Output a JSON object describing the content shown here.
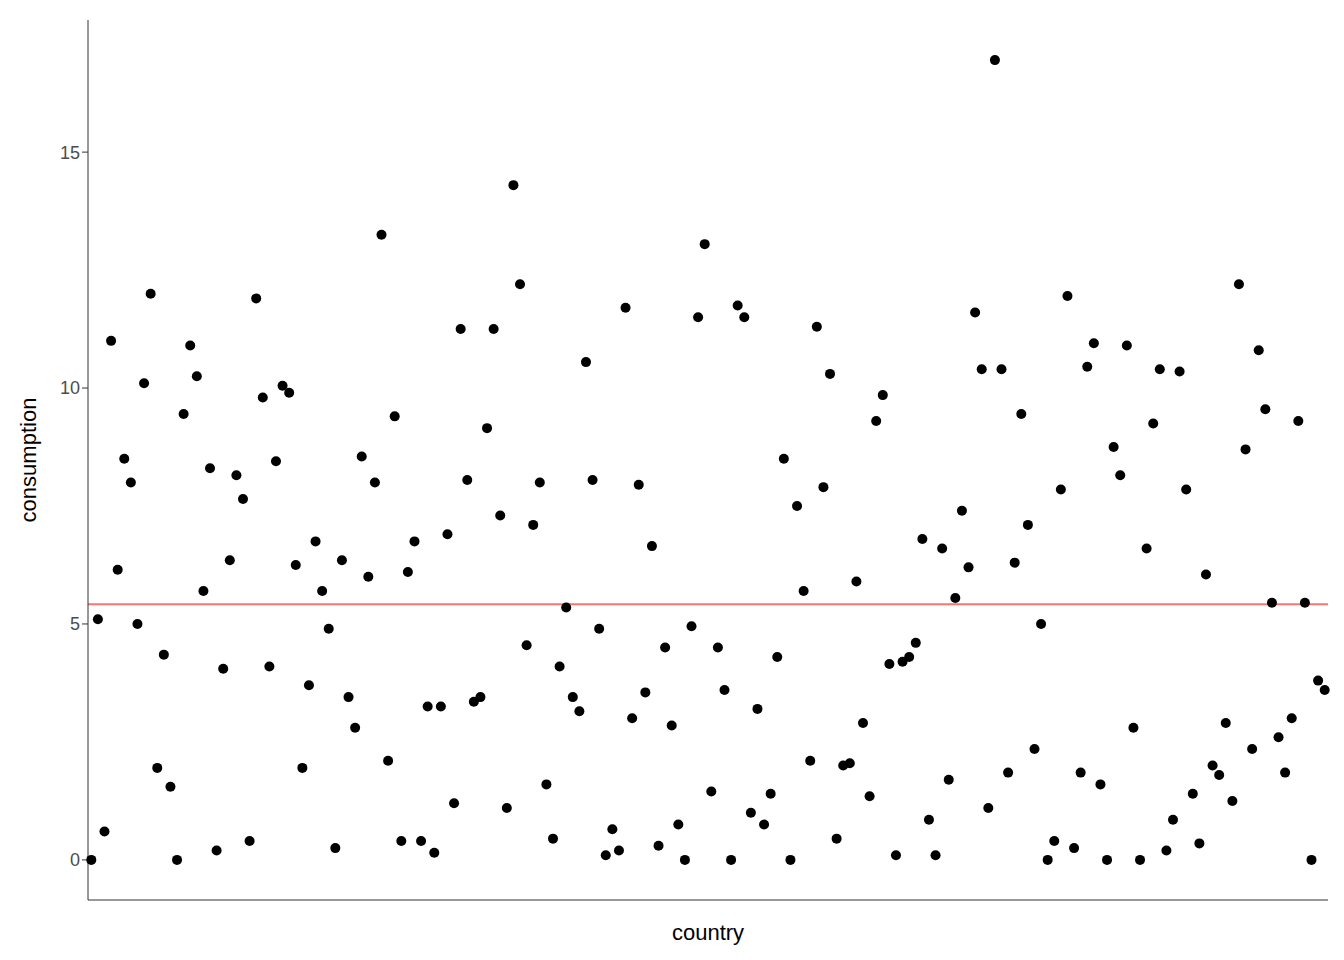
{
  "chart_data": {
    "type": "scatter",
    "x_label": "country",
    "y_label": "consumption",
    "color": "#000000",
    "marker": "circle",
    "tick_labels": "y",
    "grid": false,
    "ylim": [
      -0.85,
      17.8
    ],
    "yticks": [
      0,
      5,
      10,
      15
    ],
    "mean_line": {
      "value": 5.42,
      "color": "#f8766d"
    },
    "categories": [
      null,
      null,
      null,
      null,
      null,
      null,
      null,
      null,
      null,
      null,
      null,
      null,
      null,
      null,
      null,
      null,
      null,
      null,
      null,
      null,
      null,
      null,
      null,
      null,
      null,
      null,
      null,
      null,
      null,
      null,
      null,
      null,
      null,
      null,
      null,
      null,
      null,
      null,
      null,
      null,
      null,
      null,
      null,
      null,
      null,
      null,
      null,
      null,
      null,
      null,
      null,
      null,
      null,
      null,
      null,
      null,
      null,
      null,
      null,
      null,
      null,
      null,
      null,
      null,
      null,
      null,
      null,
      null,
      null,
      null,
      null,
      null,
      null,
      null,
      null,
      null,
      null,
      null,
      null,
      null,
      null,
      null,
      null,
      null,
      null,
      null,
      null,
      null,
      null,
      null,
      null,
      null,
      null,
      null,
      null,
      null,
      null,
      null,
      null,
      null,
      null,
      null,
      null,
      null,
      null,
      null,
      null,
      null,
      null,
      null,
      null,
      null,
      null,
      null,
      null,
      null,
      null,
      null,
      null,
      null,
      null,
      null,
      null,
      null,
      null,
      null,
      null,
      null,
      null,
      null,
      null,
      null,
      null,
      null,
      null,
      null,
      null,
      null,
      null,
      null,
      null,
      null,
      null,
      null,
      null,
      null,
      null,
      null,
      null,
      null,
      null,
      null,
      null,
      null,
      null,
      null,
      null,
      null,
      null,
      null,
      null,
      null,
      null,
      null,
      null,
      null,
      null,
      null,
      null,
      null,
      null,
      null,
      null,
      null,
      null,
      null,
      null,
      null,
      null,
      null,
      null,
      null,
      null,
      null,
      null,
      null,
      null,
      null
    ],
    "values": [
      0,
      5.1,
      0.6,
      11.0,
      6.15,
      8.5,
      8.0,
      5.0,
      10.1,
      12.0,
      1.95,
      4.35,
      1.55,
      0,
      9.45,
      10.9,
      10.25,
      5.7,
      8.3,
      0.2,
      4.05,
      6.35,
      8.15,
      7.65,
      0.4,
      11.9,
      9.8,
      4.1,
      8.45,
      10.05,
      9.9,
      6.25,
      1.95,
      3.7,
      6.75,
      5.7,
      4.9,
      0.25,
      6.35,
      3.45,
      2.8,
      8.55,
      6.0,
      8.0,
      13.25,
      2.1,
      9.4,
      0.4,
      6.1,
      6.75,
      0.4,
      3.25,
      0.15,
      3.25,
      6.9,
      1.2,
      11.25,
      8.05,
      3.35,
      3.45,
      9.15,
      11.25,
      7.3,
      1.1,
      14.3,
      12.2,
      4.55,
      7.1,
      8.0,
      1.6,
      0.45,
      4.1,
      5.35,
      3.45,
      3.15,
      10.55,
      8.05,
      4.9,
      0.1,
      0.65,
      0.2,
      11.7,
      3.0,
      7.95,
      3.55,
      6.65,
      0.3,
      4.5,
      2.85,
      0.75,
      0,
      4.95,
      11.5,
      13.05,
      1.45,
      4.5,
      3.6,
      0,
      11.75,
      11.5,
      1.0,
      3.2,
      0.75,
      1.4,
      4.3,
      8.5,
      0,
      7.5,
      5.7,
      2.1,
      11.3,
      7.9,
      10.3,
      0.45,
      2.0,
      2.05,
      5.9,
      2.9,
      1.35,
      9.3,
      9.85,
      4.15,
      0.1,
      4.2,
      4.3,
      4.6,
      6.8,
      0.85,
      0.1,
      6.6,
      1.7,
      5.55,
      7.4,
      6.2,
      11.6,
      10.4,
      1.1,
      16.95,
      10.4,
      1.85,
      6.3,
      9.45,
      7.1,
      2.35,
      5.0,
      0,
      0.4,
      7.85,
      11.95,
      0.25,
      1.85,
      10.45,
      10.95,
      1.6,
      0,
      8.75,
      8.15,
      10.9,
      2.8,
      0,
      6.6,
      9.25,
      10.4,
      0.2,
      0.85,
      10.35,
      7.85,
      1.4,
      0.35,
      6.05,
      2.0,
      1.8,
      2.9,
      1.25,
      12.2,
      8.7,
      2.35,
      10.8,
      9.55,
      5.45,
      2.6,
      1.85,
      3.0,
      9.3,
      5.45,
      0.0,
      3.8,
      3.6
    ]
  }
}
